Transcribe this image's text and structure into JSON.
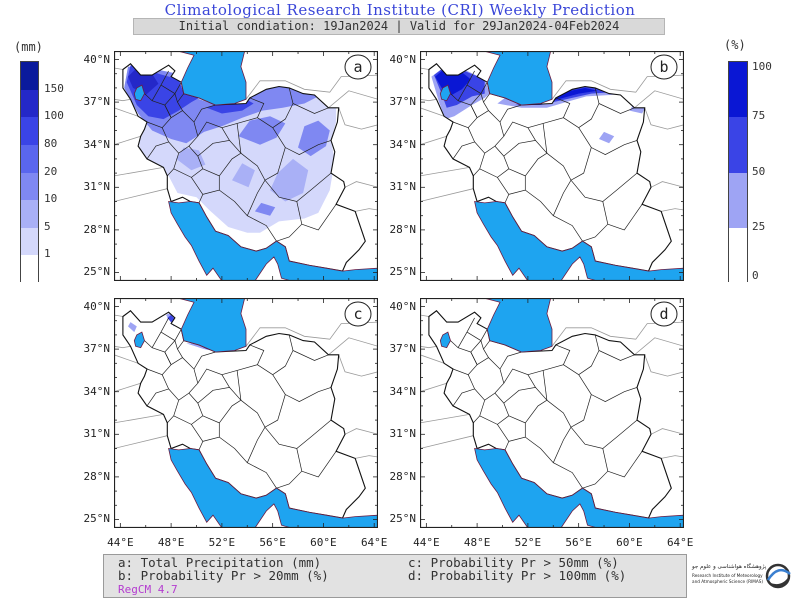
{
  "header": {
    "title": "Climatological Research Institute (CRI) Weekly Prediction",
    "subtitle": "Initial condiation: 19Jan2024 | Valid for 29Jan2024-04Feb2024"
  },
  "colorbar_left": {
    "unit": "(mm)",
    "labels": [
      "150",
      "100",
      "80",
      "20",
      "10",
      "5",
      "1"
    ],
    "colors": [
      "#0a1a9c",
      "#2428c8",
      "#3a44e6",
      "#5a66ee",
      "#7f88f2",
      "#a9b0f6",
      "#d4d8fb",
      "#ffffff"
    ]
  },
  "colorbar_right": {
    "unit": "(%)",
    "labels": [
      "100",
      "75",
      "50",
      "25",
      "0"
    ],
    "colors": [
      "#0a17d4",
      "#3a44e6",
      "#9ea4f4",
      "#ffffff"
    ]
  },
  "panels": [
    {
      "label": "a"
    },
    {
      "label": "b"
    },
    {
      "label": "c"
    },
    {
      "label": "d"
    }
  ],
  "axes": {
    "lat_labels": [
      "40°N",
      "37°N",
      "34°N",
      "31°N",
      "28°N",
      "25°N"
    ],
    "lon_labels": [
      "44°E",
      "48°E",
      "52°E",
      "56°E",
      "60°E",
      "64°E"
    ]
  },
  "legend": {
    "a": "a: Total Precipitation (mm)",
    "b": "b: Probability Pr > 20mm (%)",
    "c": "c: Probability Pr > 50mm (%)",
    "d": "d: Probability Pr > 100mm (%)",
    "model": "RegCM 4.7"
  },
  "logo": {
    "line1": "پژوهشگاه هواشناسی و علوم جو",
    "line2": "Research Institute of Meteorology",
    "line3": "and Atmospheric Science (RIMAS)"
  },
  "colors": {
    "water": "#1ea4f0",
    "title": "#3a46d8",
    "model": "#b43cd0"
  }
}
